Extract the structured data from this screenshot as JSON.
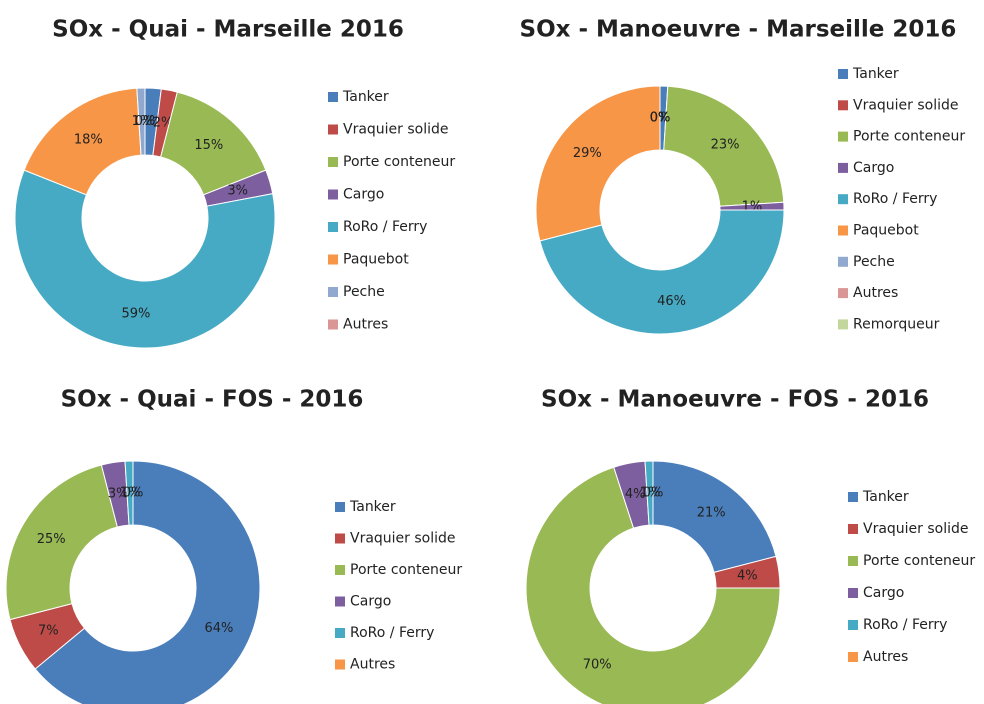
{
  "chart_data": [
    {
      "type": "donut",
      "title": "SOx - Quai - Marseille 2016",
      "categories": [
        "Tanker",
        "Vraquier solide",
        "Porte conteneur",
        "Cargo",
        "RoRo / Ferry",
        "Paquebot",
        "Peche",
        "Autres"
      ],
      "values": [
        2,
        2,
        15,
        3,
        59,
        18,
        1,
        0
      ],
      "value_labels": [
        "2%",
        "2%",
        "15%",
        "3%",
        "59%",
        "18%",
        "1%",
        "0%"
      ],
      "colors": [
        "#4a7ebb",
        "#be4b48",
        "#98b954",
        "#7d5fa0",
        "#46aac5",
        "#f79646",
        "#92a9cf",
        "#d99694"
      ]
    },
    {
      "type": "donut",
      "title": "SOx - Manoeuvre - Marseille 2016",
      "categories": [
        "Tanker",
        "Vraquier solide",
        "Porte conteneur",
        "Cargo",
        "RoRo / Ferry",
        "Paquebot",
        "Peche",
        "Autres",
        "Remorqueur"
      ],
      "values": [
        1,
        0,
        23,
        1,
        46,
        29,
        0,
        0,
        0
      ],
      "value_labels": [
        "1%",
        "0%",
        "23%",
        "1%",
        "46%",
        "29%",
        "0%",
        "0%",
        "0%"
      ],
      "colors": [
        "#4a7ebb",
        "#be4b48",
        "#98b954",
        "#7d5fa0",
        "#46aac5",
        "#f79646",
        "#92a9cf",
        "#d99694",
        "#c3d69b"
      ]
    },
    {
      "type": "donut",
      "title": "SOx - Quai - FOS - 2016",
      "categories": [
        "Tanker",
        "Vraquier solide",
        "Porte conteneur",
        "Cargo",
        "RoRo / Ferry",
        "Autres"
      ],
      "values": [
        64,
        7,
        25,
        3,
        1,
        0
      ],
      "value_labels": [
        "64%",
        "7%",
        "25%",
        "3%",
        "1%",
        "0%"
      ],
      "colors": [
        "#4a7ebb",
        "#be4b48",
        "#98b954",
        "#7d5fa0",
        "#46aac5",
        "#f79646"
      ]
    },
    {
      "type": "donut",
      "title": "SOx - Manoeuvre - FOS - 2016",
      "categories": [
        "Tanker",
        "Vraquier solide",
        "Porte conteneur",
        "Cargo",
        "RoRo / Ferry",
        "Autres"
      ],
      "values": [
        21,
        4,
        70,
        4,
        1,
        0
      ],
      "value_labels": [
        "21%",
        "4%",
        "70%",
        "4%",
        "1%",
        "0%"
      ],
      "colors": [
        "#4a7ebb",
        "#be4b48",
        "#98b954",
        "#7d5fa0",
        "#46aac5",
        "#f79646"
      ]
    }
  ]
}
